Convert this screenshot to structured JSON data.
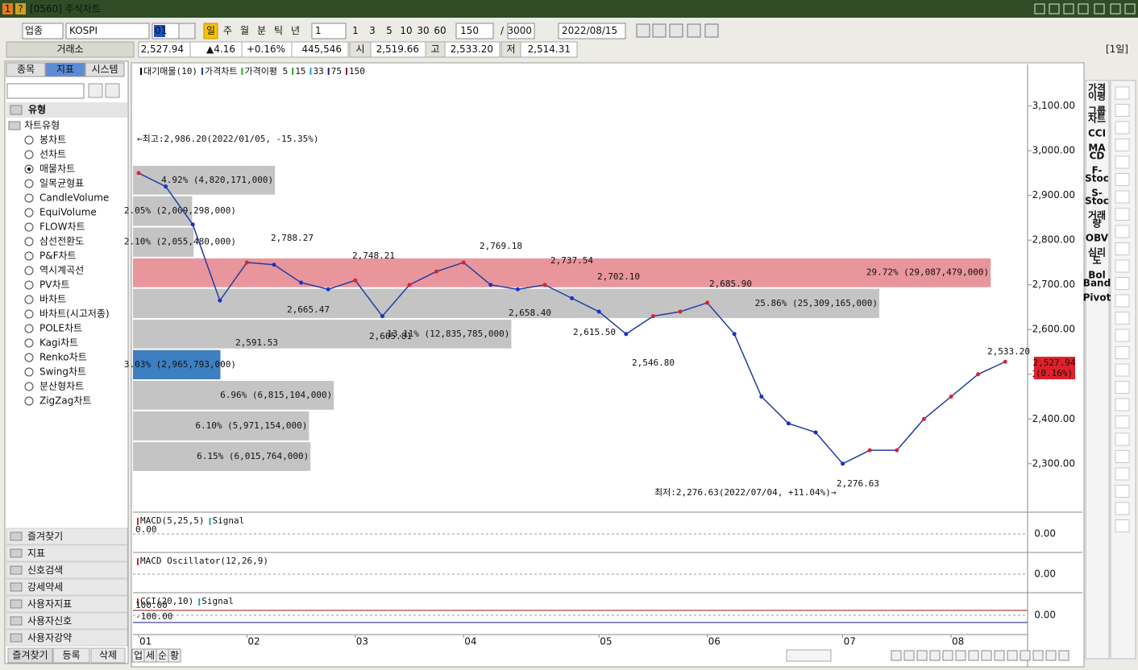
{
  "window": {
    "number": "1",
    "help": "?",
    "title": "[0560] 주식차트"
  },
  "toolbar": {
    "market": "업종",
    "symbol": "KOSPI",
    "code": "01",
    "periods": [
      "일",
      "주",
      "월",
      "분",
      "틱",
      "년"
    ],
    "period_count": "1",
    "intervals": [
      "1",
      "3",
      "5",
      "10",
      "30",
      "60"
    ],
    "view_count": "150",
    "separator": "/",
    "total_count": "3000",
    "date": "2022/08/15"
  },
  "quote": {
    "exchange": "거래소",
    "price": "2,527.94",
    "change": "▲4.16",
    "change_rate": "+0.16%",
    "volume": "445,546",
    "open_label": "시",
    "open": "2,519.66",
    "high_label": "고",
    "high": "2,533.20",
    "low_label": "저",
    "low": "2,514.31",
    "period": "[1일]"
  },
  "left_panel": {
    "tabs": [
      "종목",
      "지표",
      "시스템"
    ],
    "group": "유형",
    "subgroup": "차트유형",
    "chart_types": [
      "봉차트",
      "선차트",
      "매물차트",
      "일목균형표",
      "CandleVolume",
      "EquiVolume",
      "FLOW차트",
      "삼선전환도",
      "P&F차트",
      "역시계곡선",
      "PV차트",
      "바차트",
      "바차트(시고저종)",
      "POLE차트",
      "Kagi차트",
      "Renko차트",
      "Swing차트",
      "분산형차트",
      "ZigZag차트"
    ],
    "selected": 2,
    "folders": [
      "즐겨찾기",
      "지표",
      "신호검색",
      "강세약세",
      "사용자지표",
      "사용자신호",
      "사용자강약"
    ],
    "buttons": [
      "즐겨찾기",
      "등록",
      "삭제"
    ]
  },
  "right_toolbar": [
    [
      "가격",
      "이평"
    ],
    [
      "그룹",
      "차트"
    ],
    [
      "CCI"
    ],
    [
      "MA",
      "CD"
    ],
    [
      "F-",
      "Stoc"
    ],
    [
      "S-",
      "Stoc"
    ],
    [
      "거래",
      "량"
    ],
    [
      "OBV"
    ],
    [
      "심리",
      "도"
    ],
    [
      "Bol",
      "Band"
    ],
    [
      "Pivot"
    ]
  ],
  "chart_data": {
    "type": "line",
    "legend": [
      {
        "name": "대기매물(10)",
        "color": "#000000"
      },
      {
        "name": "가격이평 5",
        "color": "#22aa22"
      },
      {
        "name": "15",
        "color": "#22aa22"
      },
      {
        "name": "33",
        "color": "#3399dd"
      },
      {
        "name": "75",
        "color": "#1a237e"
      },
      {
        "name": "150",
        "color": "#8b1a3a"
      }
    ],
    "categories": [
      "01",
      null,
      null,
      null,
      "02",
      null,
      null,
      null,
      "03",
      null,
      null,
      null,
      "04",
      null,
      null,
      null,
      null,
      "05",
      null,
      null,
      null,
      "06",
      null,
      null,
      null,
      null,
      "07",
      null,
      null,
      null,
      "08",
      null,
      null
    ],
    "series": [
      {
        "name": "가격차트",
        "color": "#1f3fa0",
        "values": [
          2950,
          2920,
          2835,
          2665,
          2750,
          2745,
          2705,
          2690,
          2710,
          2630,
          2700,
          2730,
          2750,
          2700,
          2690,
          2700,
          2670,
          2640,
          2590,
          2630,
          2640,
          2660,
          2590,
          2450,
          2390,
          2370,
          2300,
          2330,
          2330,
          2400,
          2450,
          2500,
          2527.94
        ]
      }
    ],
    "ylim": [
      2197,
      3193
    ],
    "yticks": [
      {
        "value": 2300,
        "label": "2,300.00"
      },
      {
        "value": 2400,
        "label": "2,400.00"
      },
      {
        "value": 2500,
        "label": "2,500.00"
      },
      {
        "value": 2600,
        "label": "2,600.00"
      },
      {
        "value": 2700,
        "label": "2,700.00"
      },
      {
        "value": 2800,
        "label": "2,800.00"
      },
      {
        "value": 2900,
        "label": "2,900.00"
      },
      {
        "value": 3000,
        "label": "3,000.00"
      },
      {
        "value": 3100,
        "label": "3,100.00"
      }
    ],
    "volume_profile": {
      "edges": [
        2968,
        2900,
        2830,
        2761,
        2693,
        2624,
        2556,
        2487,
        2419,
        2350,
        2282
      ],
      "xlim": [
        0,
        31
      ],
      "values": [
        4.92,
        2.05,
        2.1,
        29.72,
        25.86,
        13.11,
        3.03,
        6.96,
        6.1,
        6.15
      ],
      "value_labels": [
        "4.92% (4,820,171,000)",
        "2.05% (2,009,298,000)",
        "2.10% (2,055,480,000)",
        "29.72% (29,087,479,000)",
        "25.86% (25,309,165,000)",
        "13.11% (12,835,785,000)",
        "3.03% (2,965,793,000)",
        "6.96% (6,815,104,000)",
        "6.10% (5,971,154,000)",
        "6.15% (6,015,764,000)"
      ],
      "colors": [
        "#c4c4c4",
        "#c4c4c4",
        "#c4c4c4",
        "#e8959c",
        "#c4c4c4",
        "#c4c4c4",
        "#3d7fc0",
        "#c4c4c4",
        "#c4c4c4",
        "#c4c4c4"
      ]
    },
    "annotations": [
      {
        "text": "←최고:2,986.20(2022/01/05, -15.35%)",
        "color": "#c0282d"
      },
      {
        "text": "2,788.27",
        "color": "#e0282d"
      },
      {
        "text": "2,748.21",
        "color": "#e0282d"
      },
      {
        "text": "2,769.18",
        "color": "#e0282d"
      },
      {
        "text": "2,737.54",
        "color": "#e0282d"
      },
      {
        "text": "2,702.10",
        "color": "#e0282d"
      },
      {
        "text": "2,685.90",
        "color": "#e0282d"
      },
      {
        "text": "2,533.20",
        "color": "#e0282d"
      },
      {
        "text": "2,591.53",
        "color": "#2030c0"
      },
      {
        "text": "2,665.47",
        "color": "#2030c0"
      },
      {
        "text": "2,605.81",
        "color": "#2030c0"
      },
      {
        "text": "2,658.40",
        "color": "#2030c0"
      },
      {
        "text": "2,615.50",
        "color": "#2030c0"
      },
      {
        "text": "2,546.80",
        "color": "#2030c0"
      },
      {
        "text": "2,276.63",
        "color": "#2030c0"
      },
      {
        "text": "최저:2,276.63(2022/07/04, +11.04%)→",
        "color": "#2030a0"
      }
    ],
    "price_tag": {
      "price": "2,527.94",
      "change": "(0.16%)"
    }
  },
  "indicators": [
    {
      "title": "MACD(5,25,5)",
      "signal": "Signal",
      "left_label": "0.00",
      "axis_label": "0.00"
    },
    {
      "title": "MACD Oscillator(12,26,9)",
      "axis_label": "0.00"
    },
    {
      "title": "CCI(20,10)",
      "signal": "Signal",
      "upper": "100.00",
      "lower": "-100.00",
      "axis_label": "0.00"
    }
  ],
  "bottom_tabs": [
    "업",
    "세",
    "순",
    "황"
  ]
}
